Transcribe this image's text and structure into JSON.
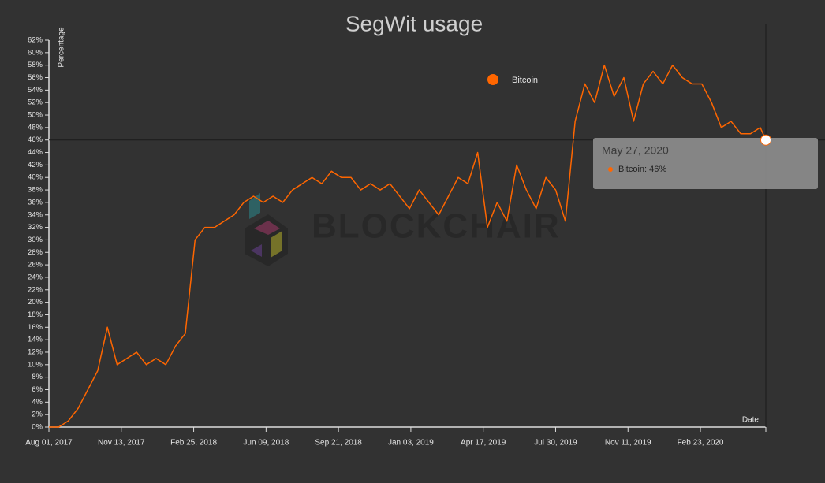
{
  "chart_data": {
    "type": "line",
    "title": "SegWit usage",
    "y_label": "Percentage",
    "x_label": "Date",
    "watermark": "BLOCKCHAIR",
    "legend_position": "top",
    "x": [
      "2017-08-01",
      "2017-08-15",
      "2017-08-29",
      "2017-09-12",
      "2017-09-26",
      "2017-10-10",
      "2017-10-24",
      "2017-11-07",
      "2017-11-21",
      "2017-12-05",
      "2017-12-19",
      "2018-01-02",
      "2018-01-16",
      "2018-01-30",
      "2018-02-13",
      "2018-02-27",
      "2018-03-13",
      "2018-03-27",
      "2018-04-10",
      "2018-04-24",
      "2018-05-08",
      "2018-05-22",
      "2018-06-05",
      "2018-06-19",
      "2018-07-03",
      "2018-07-17",
      "2018-07-31",
      "2018-08-14",
      "2018-08-28",
      "2018-09-11",
      "2018-09-25",
      "2018-10-09",
      "2018-10-23",
      "2018-11-06",
      "2018-11-20",
      "2018-12-04",
      "2018-12-18",
      "2019-01-01",
      "2019-01-15",
      "2019-01-29",
      "2019-02-12",
      "2019-02-26",
      "2019-03-12",
      "2019-03-26",
      "2019-04-09",
      "2019-04-23",
      "2019-05-07",
      "2019-05-21",
      "2019-06-04",
      "2019-06-18",
      "2019-07-02",
      "2019-07-16",
      "2019-07-30",
      "2019-08-13",
      "2019-08-27",
      "2019-09-10",
      "2019-09-24",
      "2019-10-08",
      "2019-10-22",
      "2019-11-05",
      "2019-11-19",
      "2019-12-03",
      "2019-12-17",
      "2019-12-31",
      "2020-01-14",
      "2020-01-28",
      "2020-02-11",
      "2020-02-25",
      "2020-03-10",
      "2020-03-24",
      "2020-04-07",
      "2020-04-21",
      "2020-05-05",
      "2020-05-19",
      "2020-05-27"
    ],
    "series": [
      {
        "name": "Bitcoin",
        "color": "#ff6600",
        "values": [
          0,
          0,
          1,
          3,
          6,
          9,
          16,
          10,
          11,
          12,
          10,
          11,
          10,
          13,
          15,
          30,
          32,
          32,
          33,
          34,
          36,
          37,
          36,
          37,
          36,
          38,
          39,
          40,
          39,
          41,
          40,
          40,
          38,
          39,
          38,
          39,
          37,
          35,
          38,
          36,
          34,
          37,
          40,
          39,
          44,
          32,
          36,
          33,
          42,
          38,
          35,
          40,
          38,
          33,
          49,
          55,
          52,
          58,
          53,
          56,
          49,
          55,
          57,
          55,
          58,
          56,
          55,
          55,
          52,
          48,
          49,
          47,
          47,
          48,
          46
        ]
      }
    ],
    "xlim": [
      "2017-08-01",
      "2020-05-27"
    ],
    "xticks": [
      {
        "value": "2017-08-01",
        "label": "Aug 01, 2017"
      },
      {
        "value": "2017-11-13",
        "label": "Nov 13, 2017"
      },
      {
        "value": "2018-02-25",
        "label": "Feb 25, 2018"
      },
      {
        "value": "2018-06-09",
        "label": "Jun 09, 2018"
      },
      {
        "value": "2018-09-21",
        "label": "Sep 21, 2018"
      },
      {
        "value": "2019-01-03",
        "label": "Jan 03, 2019"
      },
      {
        "value": "2019-04-17",
        "label": "Apr 17, 2019"
      },
      {
        "value": "2019-07-30",
        "label": "Jul 30, 2019"
      },
      {
        "value": "2019-11-11",
        "label": "Nov 11, 2019"
      },
      {
        "value": "2020-02-23",
        "label": "Feb 23, 2020"
      }
    ],
    "ylim": [
      0,
      62
    ],
    "yticks": [
      {
        "value": 0,
        "label": "0%"
      },
      {
        "value": 2,
        "label": "2%"
      },
      {
        "value": 4,
        "label": "4%"
      },
      {
        "value": 6,
        "label": "6%"
      },
      {
        "value": 8,
        "label": "8%"
      },
      {
        "value": 10,
        "label": "10%"
      },
      {
        "value": 12,
        "label": "12%"
      },
      {
        "value": 14,
        "label": "14%"
      },
      {
        "value": 16,
        "label": "16%"
      },
      {
        "value": 18,
        "label": "18%"
      },
      {
        "value": 20,
        "label": "20%"
      },
      {
        "value": 22,
        "label": "22%"
      },
      {
        "value": 24,
        "label": "24%"
      },
      {
        "value": 26,
        "label": "26%"
      },
      {
        "value": 28,
        "label": "28%"
      },
      {
        "value": 30,
        "label": "30%"
      },
      {
        "value": 32,
        "label": "32%"
      },
      {
        "value": 34,
        "label": "34%"
      },
      {
        "value": 36,
        "label": "36%"
      },
      {
        "value": 38,
        "label": "38%"
      },
      {
        "value": 40,
        "label": "40%"
      },
      {
        "value": 42,
        "label": "42%"
      },
      {
        "value": 44,
        "label": "44%"
      },
      {
        "value": 46,
        "label": "46%"
      },
      {
        "value": 48,
        "label": "48%"
      },
      {
        "value": 50,
        "label": "50%"
      },
      {
        "value": 52,
        "label": "52%"
      },
      {
        "value": 54,
        "label": "54%"
      },
      {
        "value": 56,
        "label": "56%"
      },
      {
        "value": 58,
        "label": "58%"
      },
      {
        "value": 60,
        "label": "60%"
      },
      {
        "value": 62,
        "label": "62%"
      }
    ],
    "tooltip": {
      "date": "May 27, 2020",
      "text": "Bitcoin: 46%"
    }
  }
}
